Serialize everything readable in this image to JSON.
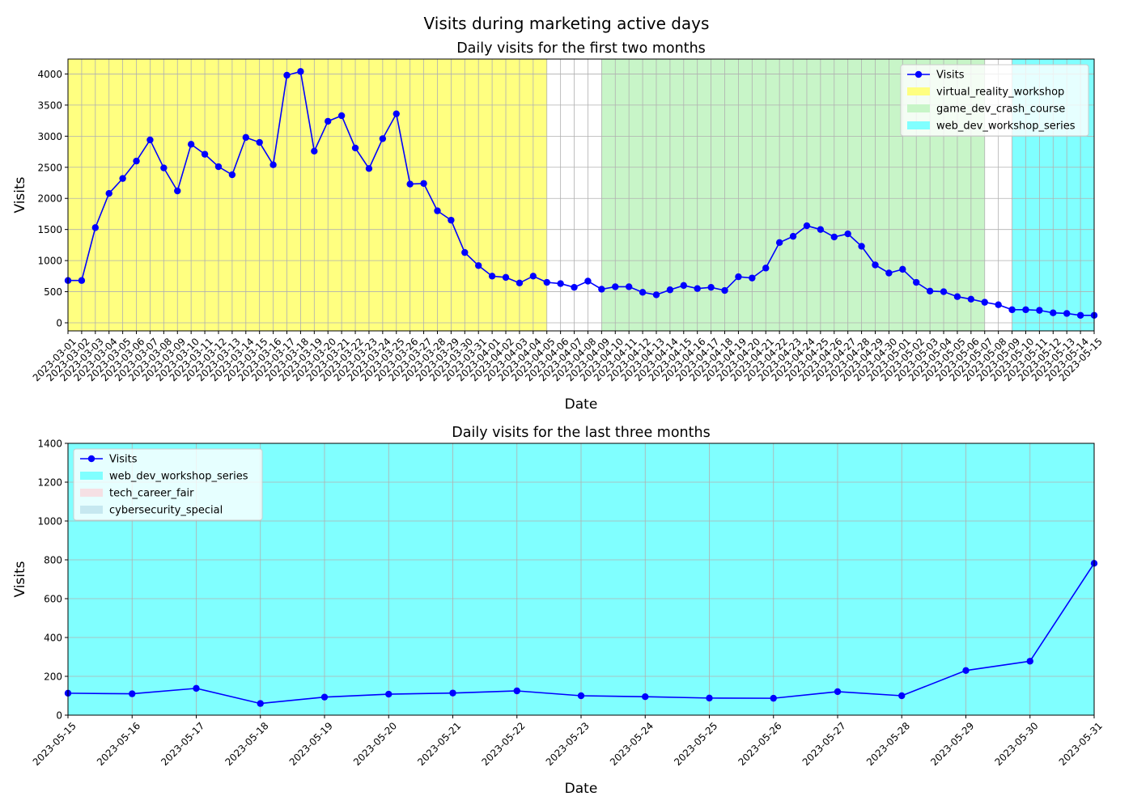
{
  "suptitle": "Visits during marketing active days",
  "colors": {
    "line": "#0000ff",
    "grid": "#b0b0b0",
    "virtual_reality_workshop": "#ffff80",
    "game_dev_crash_course": "#c8f5c8",
    "web_dev_workshop_series": "#80ffff",
    "tech_career_fair": "#f5e0e4",
    "cybersecurity_special": "#c6e8f0"
  },
  "chart_data": [
    {
      "type": "line",
      "title": "Daily visits for the first two months",
      "xlabel": "Date",
      "ylabel": "Visits",
      "ylim": [
        -130,
        4240
      ],
      "yticks": [
        0,
        500,
        1000,
        1500,
        2000,
        2500,
        3000,
        3500,
        4000
      ],
      "grid": true,
      "legend_position": "top-right",
      "x": [
        "2023-03-01",
        "2023-03-02",
        "2023-03-03",
        "2023-03-04",
        "2023-03-05",
        "2023-03-06",
        "2023-03-07",
        "2023-03-08",
        "2023-03-09",
        "2023-03-10",
        "2023-03-11",
        "2023-03-12",
        "2023-03-13",
        "2023-03-14",
        "2023-03-15",
        "2023-03-16",
        "2023-03-17",
        "2023-03-18",
        "2023-03-19",
        "2023-03-20",
        "2023-03-21",
        "2023-03-22",
        "2023-03-23",
        "2023-03-24",
        "2023-03-25",
        "2023-03-26",
        "2023-03-27",
        "2023-03-28",
        "2023-03-29",
        "2023-03-30",
        "2023-03-31",
        "2023-04-01",
        "2023-04-02",
        "2023-04-03",
        "2023-04-04",
        "2023-04-05",
        "2023-04-06",
        "2023-04-07",
        "2023-04-08",
        "2023-04-09",
        "2023-04-10",
        "2023-04-11",
        "2023-04-12",
        "2023-04-13",
        "2023-04-14",
        "2023-04-15",
        "2023-04-16",
        "2023-04-17",
        "2023-04-18",
        "2023-04-19",
        "2023-04-20",
        "2023-04-21",
        "2023-04-22",
        "2023-04-23",
        "2023-04-24",
        "2023-04-25",
        "2023-04-26",
        "2023-04-27",
        "2023-04-28",
        "2023-04-29",
        "2023-04-30",
        "2023-05-01",
        "2023-05-02",
        "2023-05-03",
        "2023-05-04",
        "2023-05-05",
        "2023-05-06",
        "2023-05-07",
        "2023-05-08",
        "2023-05-09",
        "2023-05-10",
        "2023-05-11",
        "2023-05-12",
        "2023-05-13",
        "2023-05-14",
        "2023-05-15"
      ],
      "series": [
        {
          "name": "Visits",
          "values": [
            680,
            680,
            1530,
            2080,
            2320,
            2600,
            2940,
            2490,
            2120,
            2870,
            2710,
            2510,
            2380,
            2980,
            2900,
            2540,
            3980,
            4040,
            2760,
            3240,
            3330,
            2810,
            2480,
            2960,
            3360,
            2230,
            2240,
            1800,
            1650,
            1130,
            920,
            750,
            730,
            640,
            750,
            650,
            630,
            570,
            670,
            540,
            580,
            580,
            490,
            450,
            530,
            600,
            550,
            570,
            520,
            740,
            720,
            880,
            1290,
            1390,
            1560,
            1500,
            1380,
            1430,
            1230,
            930,
            800,
            860,
            650,
            510,
            500,
            420,
            380,
            330,
            290,
            210,
            210,
            200,
            160,
            150,
            120,
            120
          ]
        }
      ],
      "spans": [
        {
          "name": "virtual_reality_workshop",
          "start": "2023-03-01",
          "end": "2023-04-05"
        },
        {
          "name": "game_dev_crash_course",
          "start": "2023-04-09",
          "end": "2023-05-07"
        },
        {
          "name": "web_dev_workshop_series",
          "start": "2023-05-09",
          "end": "2023-05-15"
        }
      ],
      "legend": [
        "Visits",
        "virtual_reality_workshop",
        "game_dev_crash_course",
        "web_dev_workshop_series"
      ]
    },
    {
      "type": "line",
      "title": "Daily visits for the last three months",
      "xlabel": "Date",
      "ylabel": "Visits",
      "ylim": [
        0,
        1400
      ],
      "yticks": [
        0,
        200,
        400,
        600,
        800,
        1000,
        1200,
        1400
      ],
      "grid": true,
      "legend_position": "top-left",
      "x": [
        "2023-05-15",
        "2023-05-16",
        "2023-05-17",
        "2023-05-18",
        "2023-05-19",
        "2023-05-20",
        "2023-05-21",
        "2023-05-22",
        "2023-05-23",
        "2023-05-24",
        "2023-05-25",
        "2023-05-26",
        "2023-05-27",
        "2023-05-28",
        "2023-05-29",
        "2023-05-30",
        "2023-05-31"
      ],
      "series": [
        {
          "name": "Visits",
          "values": [
            113,
            110,
            138,
            60,
            93,
            108,
            114,
            125,
            100,
            95,
            88,
            87,
            121,
            100,
            230,
            278,
            782
          ]
        }
      ],
      "spans": [
        {
          "name": "web_dev_workshop_series",
          "start": "2023-05-15",
          "end": "2023-05-31"
        }
      ],
      "legend": [
        "Visits",
        "web_dev_workshop_series",
        "tech_career_fair",
        "cybersecurity_special"
      ]
    }
  ]
}
